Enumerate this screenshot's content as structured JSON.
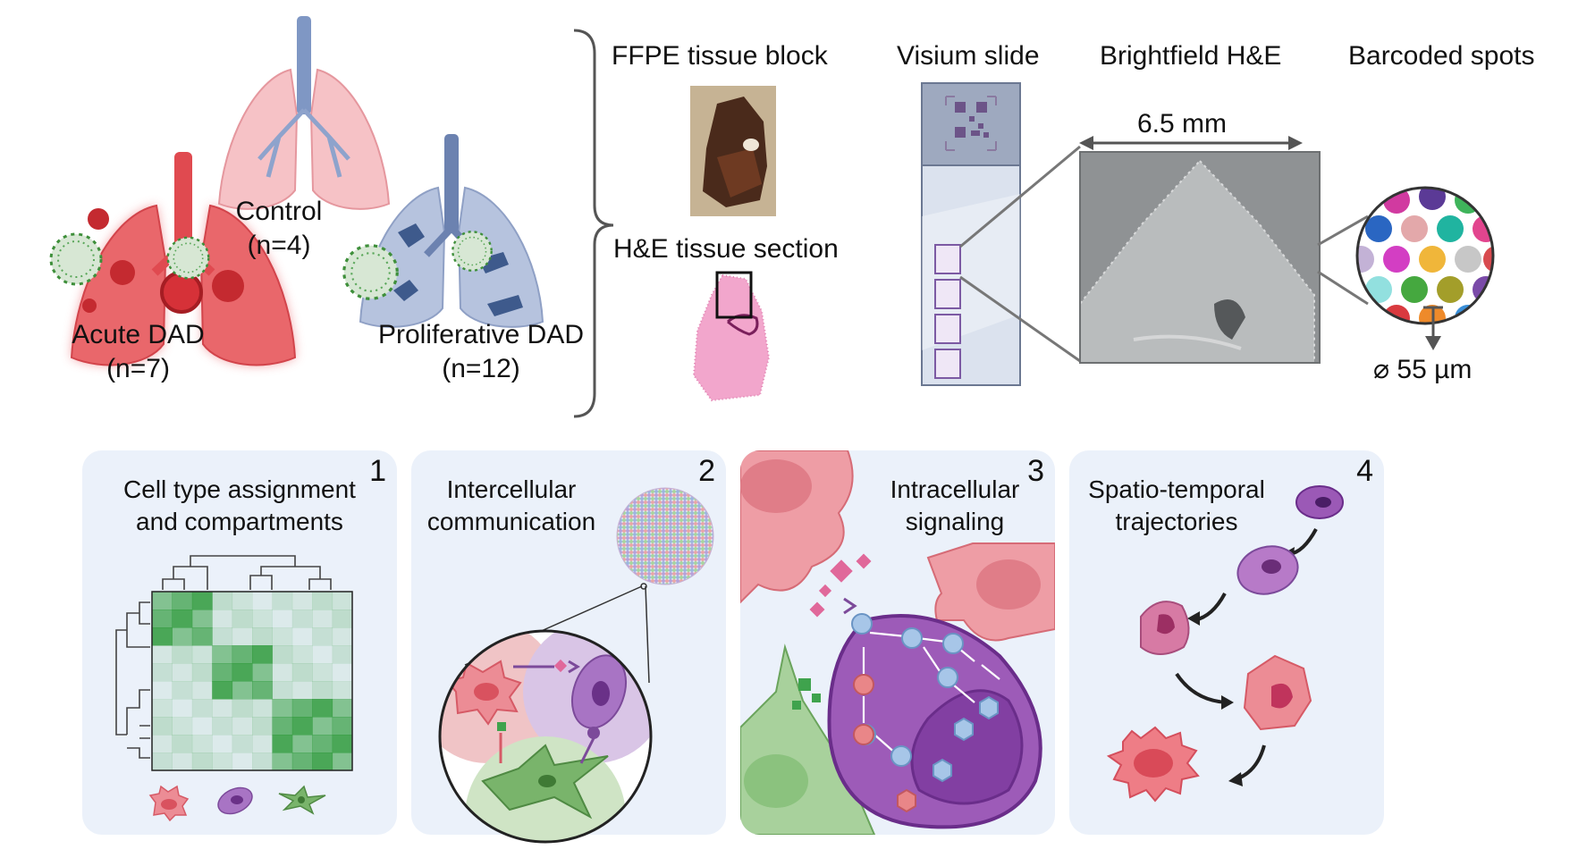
{
  "cohorts": {
    "acute": {
      "label": "Acute DAD",
      "n": "(n=7)",
      "color": "#e0474c"
    },
    "control": {
      "label": "Control",
      "n": "(n=4)",
      "color": "#e98a92"
    },
    "proliferative": {
      "label": "Proliferative DAD",
      "n": "(n=12)",
      "color": "#8fa4c9"
    }
  },
  "pipeline": {
    "ffpe_block": "FFPE tissue block",
    "he_section": "H&E tissue section",
    "visium_slide": "Visium slide",
    "brightfield": "Brightfield H&E",
    "barcoded_spots": "Barcoded spots",
    "scale_width": "6.5 mm",
    "spot_diameter": "⌀ 55 µm"
  },
  "analyses": [
    {
      "number": "1",
      "title_line1": "Cell type assignment",
      "title_line2": "and compartments"
    },
    {
      "number": "2",
      "title_line1": "Intercellular",
      "title_line2": "communication"
    },
    {
      "number": "3",
      "title_line1": "Intracellular",
      "title_line2": "signaling"
    },
    {
      "number": "4",
      "title_line1": "Spatio-temporal",
      "title_line2": "trajectories"
    }
  ],
  "colors": {
    "panel_bg": "#ebf1fa",
    "pink_cell": "#e8707d",
    "purple_cell": "#9b59b6",
    "green_cell": "#6dae5e",
    "heatmap_green": "#2e9a3a"
  },
  "icons": [
    "lung-icon",
    "virus-icon",
    "qr-code-icon",
    "cell-icon",
    "arrow-icon"
  ]
}
